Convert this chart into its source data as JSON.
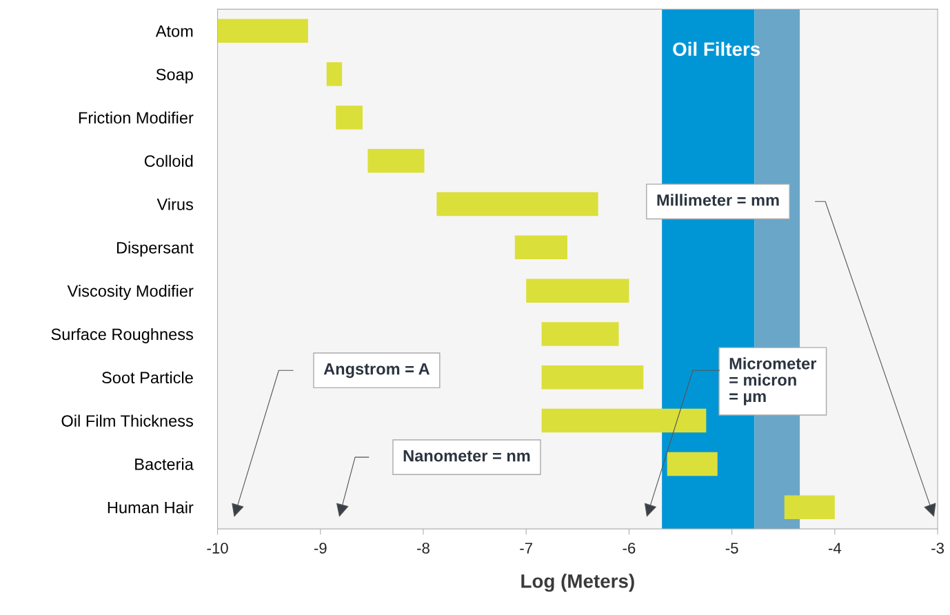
{
  "chart_data": {
    "type": "bar",
    "orientation": "horizontal",
    "xlabel": "Log (Meters)",
    "categories": [
      "Atom",
      "Soap",
      "Friction Modifier",
      "Colloid",
      "Virus",
      "Dispersant",
      "Viscosity Modifier",
      "Surface Roughness",
      "Soot Particle",
      "Oil Film Thickness",
      "Bacteria",
      "Human Hair"
    ],
    "base": [
      -10,
      -8.94,
      -8.85,
      -8.54,
      -7.87,
      -7.11,
      -7.0,
      -6.85,
      -6.85,
      -6.85,
      -5.63,
      -4.49
    ],
    "values": [
      0.88,
      0.15,
      0.26,
      0.55,
      1.57,
      0.51,
      1.0,
      0.75,
      0.99,
      1.6,
      0.49,
      0.49
    ],
    "color": "#dbdf3a",
    "xlim": [
      -10,
      -3
    ],
    "xticks": [
      -10,
      -9,
      -8,
      -7,
      -6,
      -5,
      -4,
      -3
    ],
    "bands": [
      {
        "axis": "x",
        "from": -5.68,
        "to": -4.78,
        "label": "Oil Filters",
        "color": "#0096d6"
      },
      {
        "axis": "x",
        "from": -4.78,
        "to": -4.34,
        "color": "#6aa6c8"
      }
    ],
    "annotations": [
      "Angstrom = A",
      "Nanometer = nm",
      "Micrometer\n= micron\n= µm",
      "Millimeter = mm"
    ]
  }
}
